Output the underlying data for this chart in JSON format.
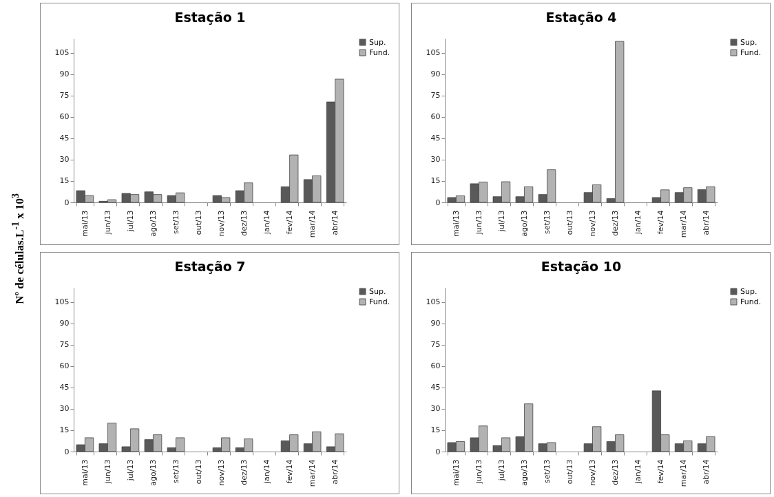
{
  "chart_data": [
    {
      "type": "bar",
      "title": "Estação 1",
      "ylabel": "Nº de células.L$^{-1}$ x 10$^{3}$",
      "categories": [
        "mai/13",
        "jun/13",
        "jul/13",
        "ago/13",
        "set/13",
        "out/13",
        "nov/13",
        "dez/13",
        "jan/14",
        "fev/14",
        "mar/14",
        "abr/14"
      ],
      "ylim": [
        0,
        115
      ],
      "yticks": [
        0,
        15,
        30,
        45,
        60,
        75,
        90,
        105
      ],
      "legend": "right",
      "series": [
        {
          "name": "Sup.",
          "color": "#595959",
          "values": [
            8.2,
            0.8,
            6.3,
            7.4,
            4.8,
            null,
            4.8,
            8.2,
            null,
            11,
            16,
            70.5
          ]
        },
        {
          "name": "Fund.",
          "color": "#b2b2b2",
          "values": [
            4.8,
            1.9,
            5.5,
            5.5,
            6.7,
            null,
            3.4,
            13.7,
            null,
            33.3,
            18.7,
            86.5
          ]
        }
      ]
    },
    {
      "type": "bar",
      "title": "Estação 4",
      "categories": [
        "mai/13",
        "jun/13",
        "jul/13",
        "ago/13",
        "set/13",
        "out/13",
        "nov/13",
        "dez/13",
        "jan/14",
        "fev/14",
        "mar/14",
        "abr/14"
      ],
      "ylim": [
        0,
        115
      ],
      "yticks": [
        0,
        15,
        30,
        45,
        60,
        75,
        90,
        105
      ],
      "legend": "right",
      "series": [
        {
          "name": "Sup.",
          "color": "#595959",
          "values": [
            3.4,
            13.1,
            4,
            4,
            5.5,
            null,
            6.9,
            2.7,
            null,
            3.4,
            6.9,
            9
          ]
        },
        {
          "name": "Fund.",
          "color": "#b2b2b2",
          "values": [
            4.6,
            14.3,
            14.5,
            11,
            22.9,
            null,
            12.4,
            113,
            null,
            8.8,
            10.3,
            11
          ]
        }
      ]
    },
    {
      "type": "bar",
      "title": "Estação 7",
      "categories": [
        "mai/13",
        "jun/13",
        "jul/13",
        "ago/13",
        "set/13",
        "out/13",
        "nov/13",
        "dez/13",
        "jan/14",
        "fev/14",
        "mar/14",
        "abr/14"
      ],
      "ylim": [
        0,
        115
      ],
      "yticks": [
        0,
        15,
        30,
        45,
        60,
        75,
        90,
        105
      ],
      "legend": "right",
      "series": [
        {
          "name": "Sup.",
          "color": "#595959",
          "values": [
            4.8,
            5.5,
            3.4,
            8.4,
            2.7,
            null,
            2.7,
            2.7,
            null,
            7.6,
            5.5,
            3.4
          ]
        },
        {
          "name": "Fund.",
          "color": "#b2b2b2",
          "values": [
            9.7,
            20,
            16,
            11.8,
            9.7,
            null,
            9.7,
            8.9,
            null,
            11.8,
            13.9,
            12.5
          ]
        }
      ]
    },
    {
      "type": "bar",
      "title": "Estação 10",
      "categories": [
        "mai/13",
        "jun/13",
        "jul/13",
        "ago/13",
        "set/13",
        "out/13",
        "nov/13",
        "dez/13",
        "jan/14",
        "fev/14",
        "mar/14",
        "abr/14"
      ],
      "ylim": [
        0,
        115
      ],
      "yticks": [
        0,
        15,
        30,
        45,
        60,
        75,
        90,
        105
      ],
      "legend": "right",
      "series": [
        {
          "name": "Sup.",
          "color": "#595959",
          "values": [
            6.3,
            9.7,
            4.2,
            10.5,
            5.5,
            null,
            5.5,
            7,
            null,
            42.6,
            5.5,
            5.5
          ]
        },
        {
          "name": "Fund.",
          "color": "#b2b2b2",
          "values": [
            7,
            18,
            9.7,
            33.5,
            6.3,
            null,
            17.5,
            11.8,
            null,
            11.8,
            7.6,
            10.5
          ]
        }
      ]
    }
  ]
}
